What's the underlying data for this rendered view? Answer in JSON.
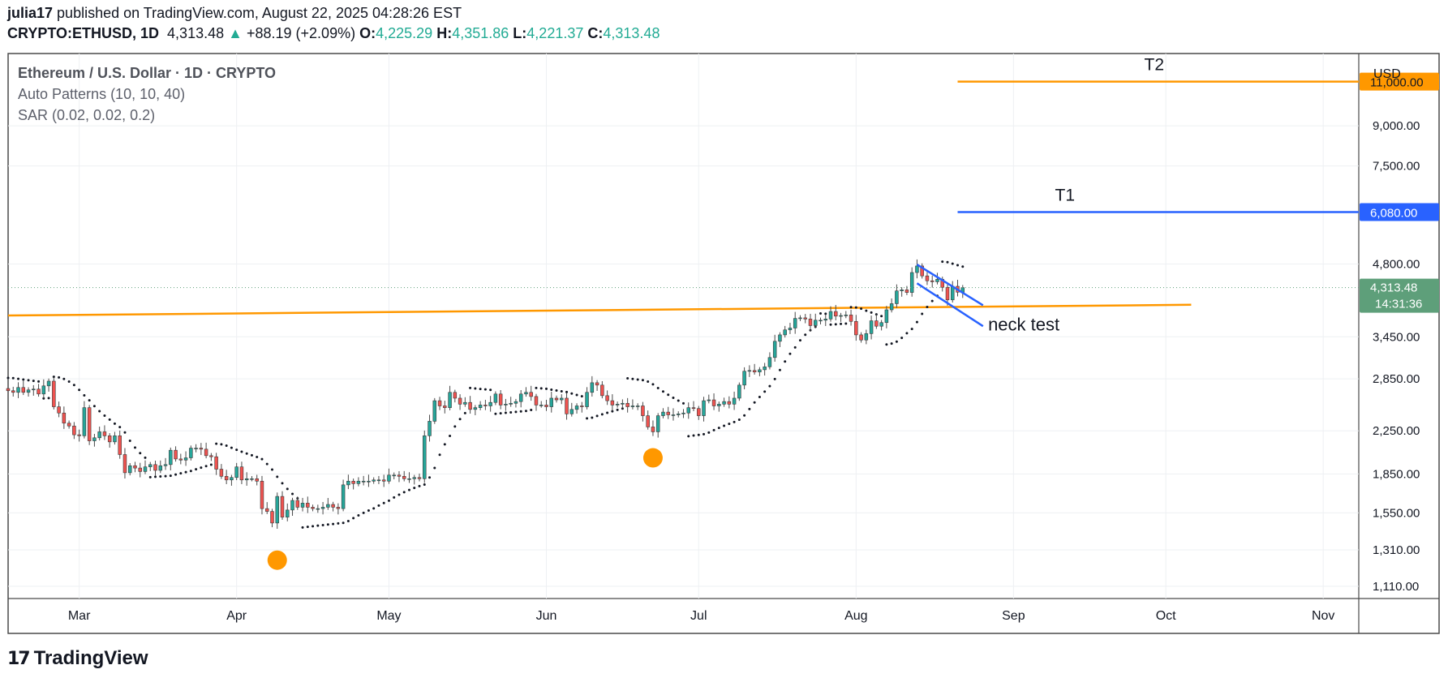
{
  "header": {
    "author": "julia17",
    "published_text": "published on TradingView.com, August 22, 2025 04:28:26 EST",
    "symbol": "CRYPTO:ETHUSD, 1D",
    "last": "4,313.48",
    "change": "+88.19 (+2.09%)",
    "o_label": "O:",
    "o": "4,225.29",
    "h_label": "H:",
    "h": "4,351.86",
    "l_label": "L:",
    "l": "4,221.37",
    "c_label": "C:",
    "c": "4,313.48"
  },
  "legend": {
    "title": "Ethereum / U.S. Dollar · 1D · CRYPTO",
    "indicator1": "Auto Patterns (10, 10, 40)",
    "indicator2": "SAR (0.02, 0.02, 0.2)"
  },
  "footer": {
    "brand": "TradingView",
    "logo_icon": "tradingview-logo-icon"
  },
  "colors": {
    "up": "#26a69a",
    "down": "#ef5350",
    "orange": "#ff9800",
    "blue": "#2962ff",
    "price_label": "#5e9f7a"
  },
  "chart_data": {
    "type": "candlestick",
    "currency": "USD",
    "y_scale": "log",
    "ylim": [
      1050,
      12500
    ],
    "x_start": "2025-02-15",
    "x_end": "2025-11-08",
    "x_tick_labels": [
      {
        "label": "Mar",
        "date": "2025-03-01"
      },
      {
        "label": "Apr",
        "date": "2025-04-01"
      },
      {
        "label": "May",
        "date": "2025-05-01"
      },
      {
        "label": "Jun",
        "date": "2025-06-01"
      },
      {
        "label": "Jul",
        "date": "2025-07-01"
      },
      {
        "label": "Aug",
        "date": "2025-08-01"
      },
      {
        "label": "Sep",
        "date": "2025-09-01"
      },
      {
        "label": "Oct",
        "date": "2025-10-01"
      },
      {
        "label": "Nov",
        "date": "2025-11-01"
      }
    ],
    "y_tick_labels": [
      {
        "label": "9,000.00",
        "value": 9000
      },
      {
        "label": "7,500.00",
        "value": 7500
      },
      {
        "label": "4,800.00",
        "value": 4800
      },
      {
        "label": "3,450.00",
        "value": 3450
      },
      {
        "label": "2,850.00",
        "value": 2850
      },
      {
        "label": "2,250.00",
        "value": 2250
      },
      {
        "label": "1,850.00",
        "value": 1850
      },
      {
        "label": "1,550.00",
        "value": 1550
      },
      {
        "label": "1,310.00",
        "value": 1310
      },
      {
        "label": "1,110.00",
        "value": 1110
      }
    ],
    "last_price": {
      "value": 4313.48,
      "label": "4,313.48",
      "countdown": "14:31:36"
    },
    "targets": [
      {
        "name": "T2",
        "value": 11000,
        "label": "11,000.00",
        "color": "#ff9800",
        "start": "2025-08-21",
        "end": "2025-11-08"
      },
      {
        "name": "T1",
        "value": 6080,
        "label": "6,080.00",
        "color": "#2962ff",
        "start": "2025-08-21",
        "end": "2025-11-08"
      }
    ],
    "neckline": {
      "start_date": "2025-02-15",
      "start_value": 3800,
      "end_date": "2025-10-06",
      "end_value": 3990,
      "color": "#ff9800"
    },
    "flag_lines": [
      {
        "start_date": "2025-08-13",
        "start_value": 4790,
        "end_date": "2025-08-26",
        "end_value": 3980
      },
      {
        "start_date": "2025-08-13",
        "start_value": 4400,
        "end_date": "2025-08-26",
        "end_value": 3620
      }
    ],
    "annotations": [
      {
        "text": "neck test",
        "date": "2025-08-27",
        "value": 3640
      }
    ],
    "pivot_markers": [
      {
        "date": "2025-04-09",
        "value": 1250
      },
      {
        "date": "2025-06-22",
        "value": 1990
      }
    ],
    "closes": [
      [
        "2025-02-15",
        2700
      ],
      [
        "2025-02-16",
        2680
      ],
      [
        "2025-02-17",
        2740
      ],
      [
        "2025-02-18",
        2680
      ],
      [
        "2025-02-19",
        2710
      ],
      [
        "2025-02-20",
        2720
      ],
      [
        "2025-02-21",
        2660
      ],
      [
        "2025-02-22",
        2760
      ],
      [
        "2025-02-23",
        2820
      ],
      [
        "2025-02-24",
        2510
      ],
      [
        "2025-02-25",
        2440
      ],
      [
        "2025-02-26",
        2330
      ],
      [
        "2025-02-27",
        2300
      ],
      [
        "2025-02-28",
        2210
      ],
      [
        "2025-03-01",
        2200
      ],
      [
        "2025-03-02",
        2500
      ],
      [
        "2025-03-03",
        2150
      ],
      [
        "2025-03-04",
        2180
      ],
      [
        "2025-03-05",
        2240
      ],
      [
        "2025-03-06",
        2200
      ],
      [
        "2025-03-07",
        2140
      ],
      [
        "2025-03-08",
        2200
      ],
      [
        "2025-03-09",
        2020
      ],
      [
        "2025-03-10",
        1860
      ],
      [
        "2025-03-11",
        1920
      ],
      [
        "2025-03-12",
        1900
      ],
      [
        "2025-03-13",
        1870
      ],
      [
        "2025-03-14",
        1910
      ],
      [
        "2025-03-15",
        1930
      ],
      [
        "2025-03-16",
        1880
      ],
      [
        "2025-03-17",
        1920
      ],
      [
        "2025-03-18",
        1930
      ],
      [
        "2025-03-19",
        2060
      ],
      [
        "2025-03-20",
        1980
      ],
      [
        "2025-03-21",
        1970
      ],
      [
        "2025-03-22",
        1990
      ],
      [
        "2025-03-23",
        2080
      ],
      [
        "2025-03-24",
        2080
      ],
      [
        "2025-03-25",
        2070
      ],
      [
        "2025-03-26",
        2010
      ],
      [
        "2025-03-27",
        2000
      ],
      [
        "2025-03-28",
        1890
      ],
      [
        "2025-03-29",
        1830
      ],
      [
        "2025-03-30",
        1800
      ],
      [
        "2025-03-31",
        1820
      ],
      [
        "2025-04-01",
        1910
      ],
      [
        "2025-04-02",
        1800
      ],
      [
        "2025-04-03",
        1810
      ],
      [
        "2025-04-04",
        1810
      ],
      [
        "2025-04-05",
        1790
      ],
      [
        "2025-04-06",
        1580
      ],
      [
        "2025-04-07",
        1560
      ],
      [
        "2025-04-08",
        1480
      ],
      [
        "2025-04-09",
        1670
      ],
      [
        "2025-04-10",
        1520
      ],
      [
        "2025-04-11",
        1570
      ],
      [
        "2025-04-12",
        1640
      ],
      [
        "2025-04-13",
        1590
      ],
      [
        "2025-04-14",
        1620
      ],
      [
        "2025-04-15",
        1590
      ],
      [
        "2025-04-16",
        1580
      ],
      [
        "2025-04-17",
        1580
      ],
      [
        "2025-04-18",
        1590
      ],
      [
        "2025-04-19",
        1610
      ],
      [
        "2025-04-20",
        1590
      ],
      [
        "2025-04-21",
        1580
      ],
      [
        "2025-04-22",
        1760
      ],
      [
        "2025-04-23",
        1790
      ],
      [
        "2025-04-24",
        1770
      ],
      [
        "2025-04-25",
        1790
      ],
      [
        "2025-04-26",
        1790
      ],
      [
        "2025-04-27",
        1790
      ],
      [
        "2025-04-28",
        1800
      ],
      [
        "2025-04-29",
        1800
      ],
      [
        "2025-04-30",
        1790
      ],
      [
        "2025-05-01",
        1840
      ],
      [
        "2025-05-02",
        1840
      ],
      [
        "2025-05-03",
        1830
      ],
      [
        "2025-05-04",
        1810
      ],
      [
        "2025-05-05",
        1810
      ],
      [
        "2025-05-06",
        1820
      ],
      [
        "2025-05-07",
        1810
      ],
      [
        "2025-05-08",
        2200
      ],
      [
        "2025-05-09",
        2350
      ],
      [
        "2025-05-10",
        2580
      ],
      [
        "2025-05-11",
        2520
      ],
      [
        "2025-05-12",
        2500
      ],
      [
        "2025-05-13",
        2680
      ],
      [
        "2025-05-14",
        2610
      ],
      [
        "2025-05-15",
        2540
      ],
      [
        "2025-05-16",
        2560
      ],
      [
        "2025-05-17",
        2480
      ],
      [
        "2025-05-18",
        2500
      ],
      [
        "2025-05-19",
        2530
      ],
      [
        "2025-05-20",
        2520
      ],
      [
        "2025-05-21",
        2560
      ],
      [
        "2025-05-22",
        2660
      ],
      [
        "2025-05-23",
        2530
      ],
      [
        "2025-05-24",
        2540
      ],
      [
        "2025-05-25",
        2550
      ],
      [
        "2025-05-26",
        2570
      ],
      [
        "2025-05-27",
        2660
      ],
      [
        "2025-05-28",
        2680
      ],
      [
        "2025-05-29",
        2630
      ],
      [
        "2025-05-30",
        2530
      ],
      [
        "2025-05-31",
        2530
      ],
      [
        "2025-06-01",
        2510
      ],
      [
        "2025-06-02",
        2610
      ],
      [
        "2025-06-03",
        2590
      ],
      [
        "2025-06-04",
        2610
      ],
      [
        "2025-06-05",
        2430
      ],
      [
        "2025-06-06",
        2480
      ],
      [
        "2025-06-07",
        2520
      ],
      [
        "2025-06-08",
        2510
      ],
      [
        "2025-06-09",
        2680
      ],
      [
        "2025-06-10",
        2800
      ],
      [
        "2025-06-11",
        2770
      ],
      [
        "2025-06-12",
        2640
      ],
      [
        "2025-06-13",
        2580
      ],
      [
        "2025-06-14",
        2530
      ],
      [
        "2025-06-15",
        2540
      ],
      [
        "2025-06-16",
        2550
      ],
      [
        "2025-06-17",
        2510
      ],
      [
        "2025-06-18",
        2520
      ],
      [
        "2025-06-19",
        2520
      ],
      [
        "2025-06-20",
        2410
      ],
      [
        "2025-06-21",
        2290
      ],
      [
        "2025-06-22",
        2240
      ],
      [
        "2025-06-23",
        2410
      ],
      [
        "2025-06-24",
        2450
      ],
      [
        "2025-06-25",
        2420
      ],
      [
        "2025-06-26",
        2420
      ],
      [
        "2025-06-27",
        2430
      ],
      [
        "2025-06-28",
        2440
      ],
      [
        "2025-06-29",
        2500
      ],
      [
        "2025-06-30",
        2490
      ],
      [
        "2025-07-01",
        2410
      ],
      [
        "2025-07-02",
        2580
      ],
      [
        "2025-07-03",
        2590
      ],
      [
        "2025-07-04",
        2520
      ],
      [
        "2025-07-05",
        2540
      ],
      [
        "2025-07-06",
        2570
      ],
      [
        "2025-07-07",
        2540
      ],
      [
        "2025-07-08",
        2610
      ],
      [
        "2025-07-09",
        2770
      ],
      [
        "2025-07-10",
        2950
      ],
      [
        "2025-07-11",
        2960
      ],
      [
        "2025-07-12",
        2940
      ],
      [
        "2025-07-13",
        2970
      ],
      [
        "2025-07-14",
        3010
      ],
      [
        "2025-07-15",
        3140
      ],
      [
        "2025-07-16",
        3380
      ],
      [
        "2025-07-17",
        3480
      ],
      [
        "2025-07-18",
        3560
      ],
      [
        "2025-07-19",
        3590
      ],
      [
        "2025-07-20",
        3750
      ],
      [
        "2025-07-21",
        3760
      ],
      [
        "2025-07-22",
        3740
      ],
      [
        "2025-07-23",
        3630
      ],
      [
        "2025-07-24",
        3720
      ],
      [
        "2025-07-25",
        3720
      ],
      [
        "2025-07-26",
        3740
      ],
      [
        "2025-07-27",
        3870
      ],
      [
        "2025-07-28",
        3790
      ],
      [
        "2025-07-29",
        3800
      ],
      [
        "2025-07-30",
        3810
      ],
      [
        "2025-07-31",
        3700
      ],
      [
        "2025-08-01",
        3480
      ],
      [
        "2025-08-02",
        3400
      ],
      [
        "2025-08-03",
        3500
      ],
      [
        "2025-08-04",
        3710
      ],
      [
        "2025-08-05",
        3620
      ],
      [
        "2025-08-06",
        3680
      ],
      [
        "2025-08-07",
        3900
      ],
      [
        "2025-08-08",
        4010
      ],
      [
        "2025-08-09",
        4250
      ],
      [
        "2025-08-10",
        4270
      ],
      [
        "2025-08-11",
        4220
      ],
      [
        "2025-08-12",
        4620
      ],
      [
        "2025-08-13",
        4760
      ],
      [
        "2025-08-14",
        4550
      ],
      [
        "2025-08-15",
        4450
      ],
      [
        "2025-08-16",
        4430
      ],
      [
        "2025-08-17",
        4480
      ],
      [
        "2025-08-18",
        4320
      ],
      [
        "2025-08-19",
        4080
      ],
      [
        "2025-08-20",
        4340
      ],
      [
        "2025-08-21",
        4225.29
      ],
      [
        "2025-08-22",
        4313.48
      ]
    ]
  }
}
